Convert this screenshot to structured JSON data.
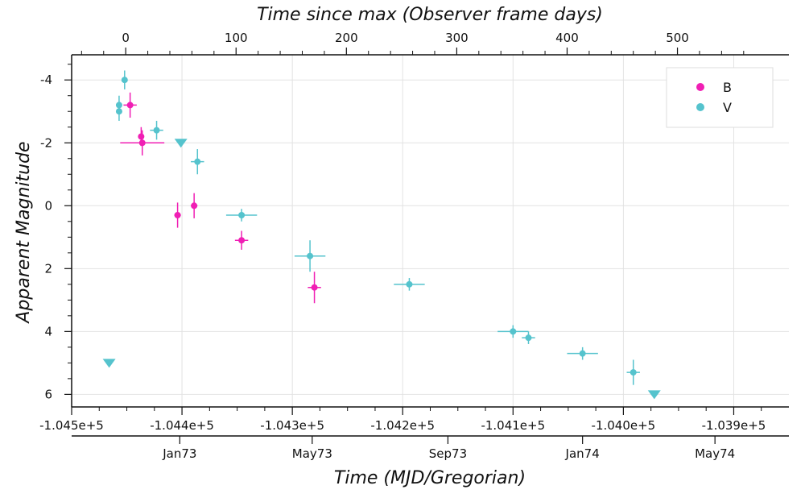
{
  "chart_data": {
    "type": "scatter",
    "title": "",
    "x_label": "Time (MJD/Gregorian)",
    "x_top_label": "Time since max (Observer frame days)",
    "y_label": "Apparent Magnitude",
    "x_range": [
      -104500,
      -103850
    ],
    "y_range": [
      6.4,
      -4.8
    ],
    "y_inverted": true,
    "grid": true,
    "legend_placement": "top-right",
    "x_ticks": [
      -104500,
      -104400,
      -104300,
      -104200,
      -104100,
      -104000,
      -103900
    ],
    "x_tick_labels": [
      "-1.045e+5",
      "-1.044e+5",
      "-1.043e+5",
      "-1.042e+5",
      "-1.041e+5",
      "-1.040e+5",
      "-1.039e+5"
    ],
    "x_calendar_ticks": [
      -104402,
      -104282,
      -104159,
      -104037,
      -103917
    ],
    "x_calendar_labels": [
      "Jan73",
      "May73",
      "Sep73",
      "Jan74",
      "May74"
    ],
    "x_top_ticks": [
      0,
      100,
      200,
      300,
      400,
      500
    ],
    "x_top_tick_labels": [
      "0",
      "100",
      "200",
      "300",
      "400",
      "500"
    ],
    "x_top_offset": -104451,
    "y_ticks": [
      -4,
      -2,
      0,
      2,
      4,
      6
    ],
    "y_tick_labels": [
      "-4",
      "-2",
      "0",
      "2",
      "4",
      "6"
    ],
    "series": [
      {
        "name": "B",
        "color": "#f01fb4",
        "points": [
          {
            "x": -104447,
            "y": -3.2,
            "xerr": 6,
            "yerr": 0.4
          },
          {
            "x": -104437,
            "y": -2.2,
            "xerr": 0,
            "yerr": 0.3
          },
          {
            "x": -104436,
            "y": -2.0,
            "xerr": 20,
            "yerr": 0.4
          },
          {
            "x": -104404,
            "y": 0.3,
            "xerr": 3,
            "yerr": 0.4
          },
          {
            "x": -104389,
            "y": 0.0,
            "xerr": 3,
            "yerr": 0.4
          },
          {
            "x": -104346,
            "y": 1.1,
            "xerr": 6,
            "yerr": 0.3
          },
          {
            "x": -104280,
            "y": 2.6,
            "xerr": 6,
            "yerr": 0.5
          }
        ],
        "upper_limits": []
      },
      {
        "name": "V",
        "color": "#55c3cd",
        "points": [
          {
            "x": -104457,
            "y": -3.2,
            "xerr": 0,
            "yerr": 0.3
          },
          {
            "x": -104457,
            "y": -3.0,
            "xerr": 0,
            "yerr": 0.3
          },
          {
            "x": -104452,
            "y": -4.0,
            "xerr": 0,
            "yerr": 0.3
          },
          {
            "x": -104423,
            "y": -2.4,
            "xerr": 6,
            "yerr": 0.3
          },
          {
            "x": -104386,
            "y": -1.4,
            "xerr": 6,
            "yerr": 0.4
          },
          {
            "x": -104346,
            "y": 0.3,
            "xerr": 14,
            "yerr": 0.2
          },
          {
            "x": -104284,
            "y": 1.6,
            "xerr": 14,
            "yerr": 0.5
          },
          {
            "x": -104194,
            "y": 2.5,
            "xerr": 14,
            "yerr": 0.2
          },
          {
            "x": -104100,
            "y": 4.0,
            "xerr": 14,
            "yerr": 0.2
          },
          {
            "x": -104086,
            "y": 4.2,
            "xerr": 6,
            "yerr": 0.2
          },
          {
            "x": -104037,
            "y": 4.7,
            "xerr": 14,
            "yerr": 0.2
          },
          {
            "x": -103991,
            "y": 5.3,
            "xerr": 6,
            "yerr": 0.4
          }
        ],
        "upper_limits": [
          {
            "x": -104466,
            "y": 5.0
          },
          {
            "x": -104401,
            "y": -2.0
          },
          {
            "x": -103972,
            "y": 6.0
          }
        ]
      }
    ]
  }
}
